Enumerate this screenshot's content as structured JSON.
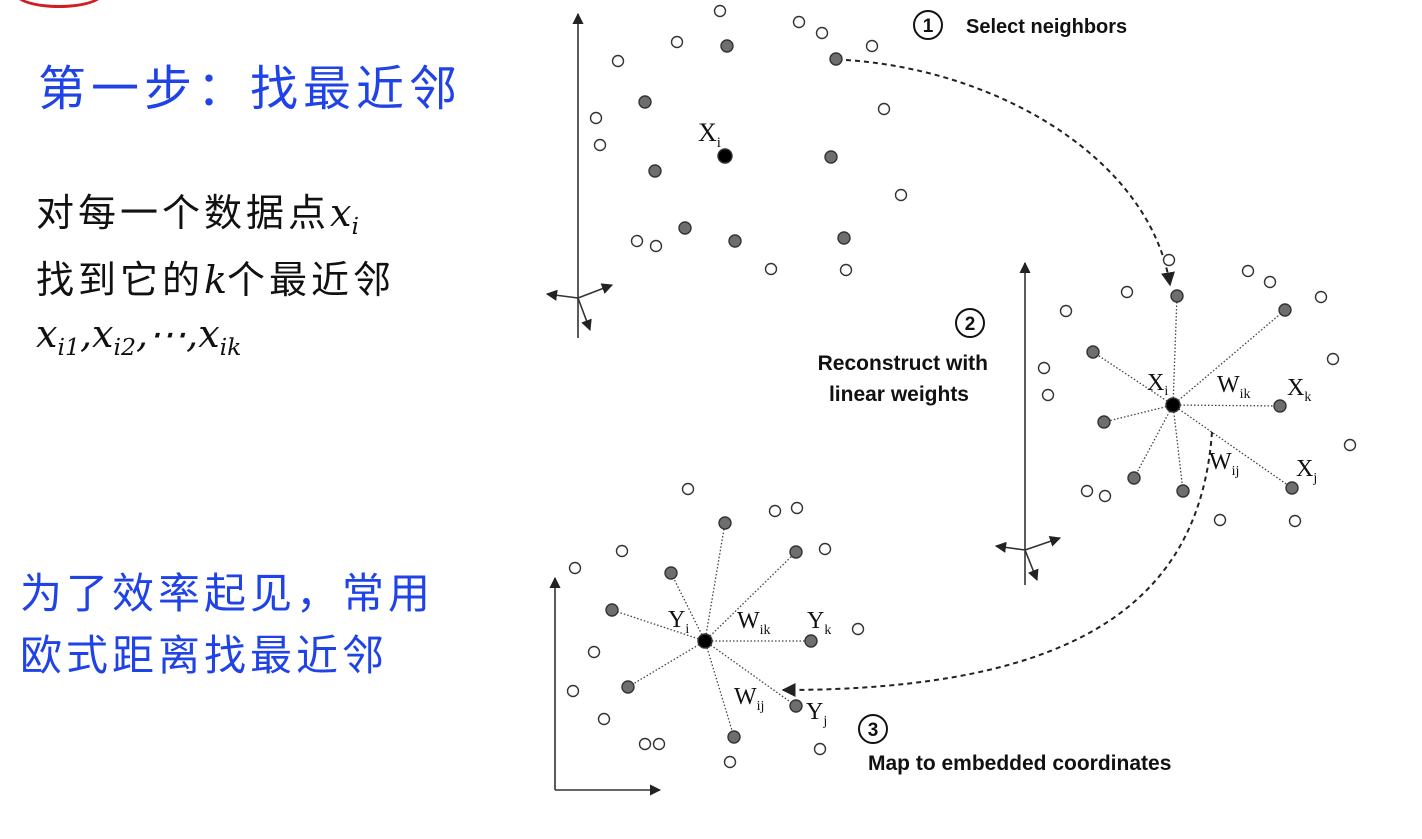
{
  "slide": {
    "title": "第一步：找最近邻",
    "desc_line1_prefix": "对每一个数据点",
    "desc_line2_a": "找到它的",
    "desc_line2_b": "个最近邻",
    "var_x": "x",
    "var_k": "k",
    "sub_i": "i",
    "sub_i1": "i1",
    "sub_i2": "i2",
    "sub_ik": "ik",
    "comma": ",",
    "ellipsis": "⋯",
    "note_line1": "为了效率起见，常用",
    "note_line2": "欧式距离找最近邻"
  },
  "diagram": {
    "step1": {
      "number": "1",
      "label": "Select neighbors",
      "xi": "X",
      "xi_sub": "i"
    },
    "step2": {
      "number": "2",
      "label_line1": "Reconstruct with",
      "label_line2": "linear weights",
      "xi": "X",
      "xi_sub": "i",
      "wik": "W",
      "wik_sub": "ik",
      "xk": "X",
      "xk_sub": "k",
      "wij": "W",
      "wij_sub": "ij",
      "xj": "X",
      "xj_sub": "j"
    },
    "step3": {
      "number": "3",
      "label": "Map to embedded coordinates",
      "yi": "Y",
      "yi_sub": "i",
      "wik": "W",
      "wik_sub": "ik",
      "yk": "Y",
      "yk_sub": "k",
      "wij": "W",
      "wij_sub": "ij",
      "yj": "Y",
      "yj_sub": "j"
    },
    "colors": {
      "accent_blue": "#1f43e6",
      "neighbor_fill": "#6e6e6e",
      "center_fill": "#000000",
      "other_fill": "#ffffff",
      "stroke": "#333333"
    }
  }
}
